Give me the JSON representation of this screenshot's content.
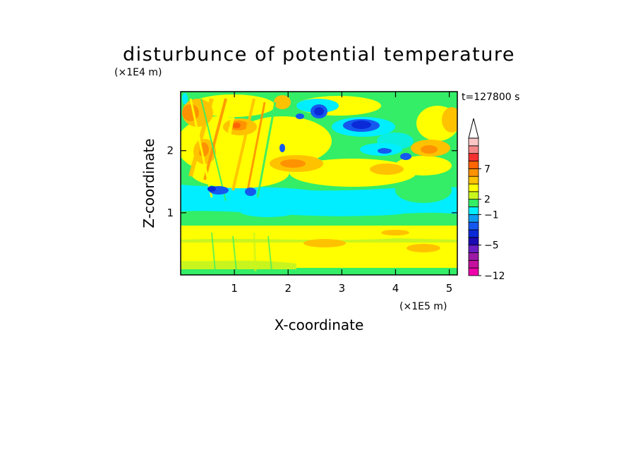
{
  "chart_data": {
    "type": "heatmap",
    "title": "disturbunce of potential temperature",
    "xlabel": "X-coordinate",
    "ylabel": "Z-coordinate",
    "x_unit": "(×1E5 m)",
    "y_unit": "(×1E4 m)",
    "time_label": "t=127800 s",
    "xlim": [
      0,
      5.15
    ],
    "ylim": [
      0,
      2.95
    ],
    "x_ticks": [
      1,
      2,
      3,
      4,
      5
    ],
    "y_ticks": [
      1,
      2
    ],
    "colorbar": {
      "levels": [
        -12,
        -11,
        -9,
        -7,
        -5,
        -4,
        -3,
        -2,
        -1,
        1,
        2,
        3,
        5,
        6,
        7,
        8,
        9,
        10
      ],
      "labeled_levels": [
        -12,
        -5,
        -1,
        2,
        7
      ],
      "colors": [
        "#ee00aa",
        "#c5119d",
        "#9b1aa5",
        "#6b1ec4",
        "#1c0bb3",
        "#0a2ad8",
        "#1558ef",
        "#0d9af2",
        "#00eeff",
        "#33ee66",
        "#c9f51e",
        "#ffff00",
        "#ffc200",
        "#ff9200",
        "#ff6500",
        "#f53030",
        "#f48888",
        "#f9c6c6"
      ],
      "extend": "max"
    },
    "features": [
      {
        "x": 0.3,
        "z": 2.45,
        "value": 6,
        "note": "warm wave packet top-left"
      },
      {
        "x": 1.05,
        "z": 2.45,
        "value": 6
      },
      {
        "x": 2.55,
        "z": 2.65,
        "value": -6
      },
      {
        "x": 3.4,
        "z": 2.45,
        "value": -6
      },
      {
        "x": 3.75,
        "z": 2.1,
        "value": -5
      },
      {
        "x": 0.8,
        "z": 1.35,
        "value": -4
      },
      {
        "x": 1.25,
        "z": 1.35,
        "value": -4
      },
      {
        "x": 2.5,
        "z": 1.25,
        "value": 0
      },
      {
        "x": 3.6,
        "z": 1.8,
        "value": 3
      },
      {
        "x": 4.4,
        "z": 2.05,
        "value": 5
      },
      {
        "x": 4.6,
        "z": 0.45,
        "value": 4
      },
      {
        "x": 2.8,
        "z": 0.55,
        "value": 3
      }
    ]
  }
}
